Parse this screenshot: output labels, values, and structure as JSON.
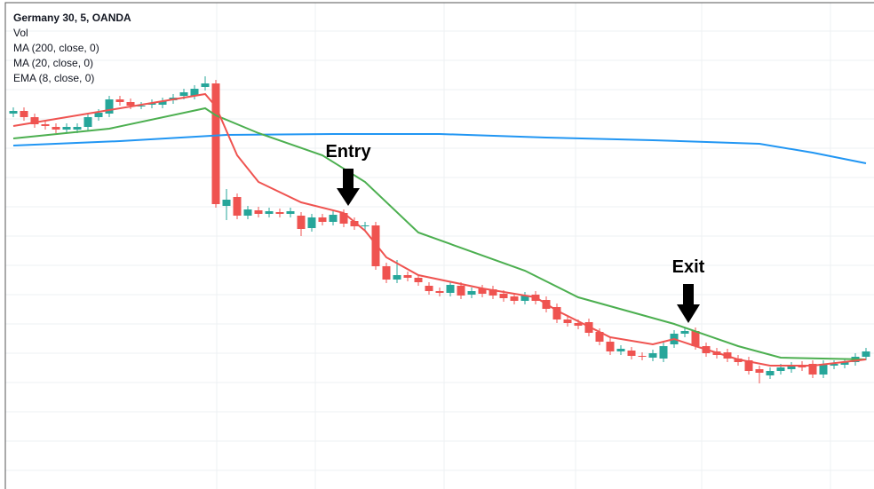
{
  "chart_data": {
    "type": "candlestick",
    "title": "Germany 30, 5, OANDA",
    "volume_label": "Vol",
    "ylim": [
      0,
      551
    ],
    "up_color": "#26a69a",
    "down_color": "#ef5350",
    "open": [
      423,
      426,
      419,
      411,
      408,
      405,
      405,
      408,
      419,
      423,
      439,
      436,
      432,
      433,
      433,
      438,
      443,
      443,
      453,
      457,
      319,
      329,
      308,
      314,
      310,
      312,
      310,
      308,
      294,
      306,
      301,
      311,
      302,
      296,
      297,
      251,
      236,
      241,
      238,
      229,
      223,
      221,
      229,
      219,
      226,
      225,
      220,
      217,
      212,
      219,
      213,
      205,
      191,
      187,
      188,
      177,
      166,
      155,
      156,
      150,
      148,
      147,
      163,
      175,
      178,
      161,
      155,
      154,
      147,
      145,
      135,
      128,
      133,
      135,
      140,
      141,
      129,
      139,
      140,
      143,
      149
    ],
    "close": [
      426,
      419,
      411,
      409,
      405,
      408,
      408,
      419,
      424,
      439,
      436,
      432,
      432,
      435,
      437,
      441,
      447,
      451,
      457,
      321,
      326,
      308,
      315,
      310,
      313,
      310,
      313,
      293,
      306,
      301,
      309,
      299,
      296,
      297,
      251,
      236,
      241,
      238,
      233,
      223,
      221,
      230,
      218,
      223,
      220,
      218,
      215,
      212,
      218,
      212,
      203,
      191,
      187,
      184,
      176,
      166,
      155,
      158,
      150,
      149,
      153,
      161,
      175,
      178,
      161,
      153,
      151,
      147,
      143,
      133,
      131,
      133,
      137,
      139,
      137,
      129,
      141,
      141,
      143,
      149,
      155
    ],
    "high": [
      430,
      430,
      423,
      415,
      412,
      412,
      412,
      423,
      428,
      443,
      443,
      440,
      436,
      439,
      441,
      445,
      451,
      455,
      465,
      461,
      338,
      333,
      319,
      318,
      317,
      316,
      317,
      312,
      310,
      310,
      313,
      315,
      306,
      301,
      301,
      255,
      258,
      245,
      242,
      233,
      227,
      234,
      233,
      227,
      230,
      229,
      224,
      221,
      222,
      223,
      217,
      209,
      195,
      191,
      192,
      181,
      170,
      162,
      160,
      154,
      157,
      165,
      179,
      182,
      182,
      165,
      159,
      158,
      151,
      149,
      139,
      137,
      141,
      143,
      144,
      145,
      145,
      145,
      147,
      153,
      159
    ],
    "low": [
      419,
      415,
      407,
      405,
      401,
      401,
      401,
      404,
      415,
      419,
      432,
      428,
      428,
      429,
      429,
      434,
      439,
      439,
      449,
      317,
      303,
      304,
      304,
      306,
      306,
      306,
      306,
      285,
      290,
      297,
      297,
      295,
      292,
      292,
      247,
      232,
      232,
      234,
      229,
      219,
      217,
      217,
      214,
      215,
      216,
      214,
      211,
      208,
      208,
      208,
      199,
      187,
      183,
      180,
      172,
      162,
      151,
      151,
      146,
      145,
      144,
      143,
      159,
      171,
      157,
      149,
      147,
      143,
      139,
      129,
      119,
      124,
      129,
      131,
      133,
      125,
      125,
      135,
      136,
      139,
      145
    ],
    "lines": [
      {
        "name": "MA (200, close, 0)",
        "color": "#2196f3",
        "x": [
          0,
          10,
          20,
          30,
          40,
          50,
          60,
          70,
          75,
          80
        ],
        "values": [
          387,
          392,
          399,
          400,
          400,
          396,
          393,
          389,
          379,
          367
        ]
      },
      {
        "name": "MA (20, close, 0)",
        "color": "#4caf50",
        "x": [
          0,
          9,
          18,
          19,
          23,
          29,
          33,
          38,
          48,
          53,
          62,
          68,
          72,
          80
        ],
        "values": [
          395,
          406,
          429,
          421,
          401,
          376,
          346,
          289,
          246,
          216,
          186,
          161,
          148,
          146
        ]
      },
      {
        "name": "EMA (8, close, 0)",
        "color": "#ef5350",
        "x": [
          0,
          18,
          19,
          21,
          23,
          27,
          31,
          33,
          35,
          38,
          44,
          49,
          51,
          56,
          60,
          62,
          64,
          68,
          71,
          75,
          80
        ],
        "values": [
          409,
          445,
          431,
          376,
          346,
          323,
          311,
          291,
          261,
          241,
          226,
          216,
          201,
          171,
          163,
          169,
          161,
          146,
          139,
          139,
          146
        ]
      }
    ],
    "annotations": [
      "Entry",
      "Exit"
    ]
  }
}
